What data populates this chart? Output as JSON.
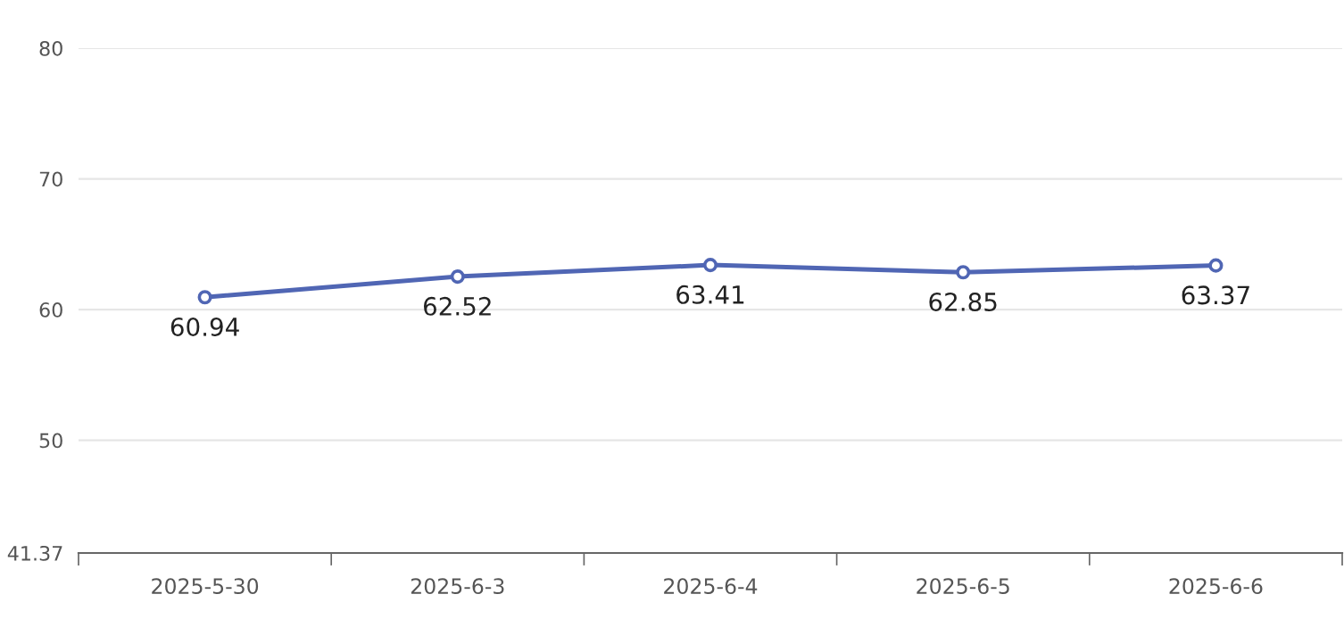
{
  "chart_data": {
    "type": "line",
    "categories": [
      "2025-5-30",
      "2025-6-3",
      "2025-6-4",
      "2025-6-5",
      "2025-6-6"
    ],
    "series": [
      {
        "color": "#5066b4",
        "values": [
          60.94,
          62.52,
          63.41,
          62.85,
          63.37
        ]
      }
    ],
    "ylim": [
      41.37,
      80
    ],
    "yticks": [
      41.37,
      50,
      60,
      70,
      80
    ],
    "grid": "y",
    "marker": "circle",
    "line_style": "solid",
    "data_labels": true
  }
}
